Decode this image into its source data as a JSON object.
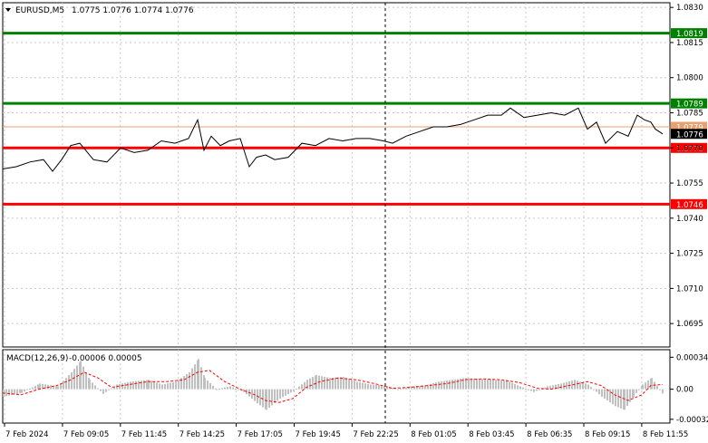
{
  "header": {
    "symbol": "EURUSD,M5",
    "ohlc": "1.0775 1.0776 1.0774 1.0776"
  },
  "macd_header": {
    "label": "MACD(12,26,9)",
    "values": "-0.00006 0.00005"
  },
  "colors": {
    "background": "#ffffff",
    "price_line": "#000000",
    "grid": "#c8c8c8",
    "level_green": "#008000",
    "level_red": "#ff0000",
    "level_orange": "#e8a070",
    "macd_hist": "#c0c0c0",
    "macd_signal": "#ff0000",
    "axis_text": "#000000"
  },
  "chart_data": [
    {
      "type": "line",
      "name": "EURUSD M5 price",
      "ylim": [
        1.0685,
        1.0832
      ],
      "y_ticks": [
        "1.0830",
        "1.0815",
        "1.0800",
        "1.0785",
        "1.0770",
        "1.0755",
        "1.0740",
        "1.0725",
        "1.0710",
        "1.0695"
      ],
      "x_ticks": [
        "7 Feb 2024",
        "7 Feb 09:05",
        "7 Feb 11:45",
        "7 Feb 14:25",
        "7 Feb 17:05",
        "7 Feb 19:45",
        "7 Feb 22:25",
        "8 Feb 01:05",
        "8 Feb 03:45",
        "8 Feb 06:35",
        "8 Feb 09:15",
        "8 Feb 11:55"
      ],
      "series": [
        {
          "x_index": [
            0,
            15,
            30,
            45,
            55,
            65,
            75,
            85,
            100,
            115,
            130,
            145,
            160,
            175,
            190,
            205,
            215,
            222,
            230,
            240,
            250,
            262,
            272,
            280,
            290,
            300,
            315,
            330,
            345,
            360,
            375,
            390,
            405,
            420,
            430,
            445,
            460,
            475,
            490,
            505,
            520,
            535,
            550,
            560,
            575,
            590,
            605,
            620,
            635,
            645,
            655,
            665,
            678,
            690,
            700,
            708,
            715,
            720,
            728
          ],
          "values": [
            1.0761,
            1.0762,
            1.0764,
            1.0765,
            1.076,
            1.0765,
            1.0771,
            1.0772,
            1.0765,
            1.0764,
            1.077,
            1.0768,
            1.0769,
            1.0773,
            1.0772,
            1.0774,
            1.0782,
            1.0769,
            1.0775,
            1.0771,
            1.0773,
            1.0774,
            1.0762,
            1.0766,
            1.0767,
            1.0765,
            1.0766,
            1.0772,
            1.0771,
            1.0774,
            1.0773,
            1.0774,
            1.0774,
            1.0773,
            1.0772,
            1.0775,
            1.0777,
            1.0779,
            1.0779,
            1.078,
            1.0782,
            1.0784,
            1.0784,
            1.0787,
            1.0783,
            1.0784,
            1.0785,
            1.0784,
            1.0787,
            1.0778,
            1.0781,
            1.0772,
            1.0777,
            1.0775,
            1.0784,
            1.0782,
            1.0781,
            1.0778,
            1.0776
          ]
        }
      ],
      "levels": [
        {
          "label": "1.0819",
          "value": 1.0819,
          "color": "#008000"
        },
        {
          "label": "1.0789",
          "value": 1.0789,
          "color": "#008000"
        },
        {
          "label": "1.0779",
          "value": 1.0779,
          "color": "#e8a070"
        },
        {
          "label": "1.0776",
          "value": 1.0776,
          "color": "#000000"
        },
        {
          "label": "1.0770",
          "value": 1.077,
          "color": "#ff0000"
        },
        {
          "label": "1.0746",
          "value": 1.0746,
          "color": "#ff0000"
        }
      ],
      "grid": true
    },
    {
      "type": "bar",
      "name": "MACD(12,26,9)",
      "ylim": [
        -0.00036,
        0.00042
      ],
      "y_ticks": [
        "0.00034",
        "0.00",
        "-0.00032"
      ],
      "histogram": {
        "x_index": [
          0,
          20,
          40,
          60,
          75,
          85,
          95,
          110,
          125,
          140,
          160,
          175,
          190,
          205,
          215,
          222,
          235,
          250,
          265,
          280,
          290,
          305,
          320,
          335,
          345,
          360,
          375,
          390,
          405,
          420,
          435,
          450,
          465,
          480,
          495,
          510,
          525,
          540,
          555,
          570,
          585,
          600,
          615,
          630,
          645,
          660,
          675,
          685,
          695,
          705,
          715,
          728
        ],
        "values": [
          -8e-05,
          -4e-05,
          6e-05,
          3e-05,
          0.00018,
          0.0003,
          0.0001,
          -5e-05,
          5e-05,
          8e-05,
          0.0001,
          5e-05,
          8e-05,
          0.00018,
          0.00032,
          0.00012,
          0.0,
          3e-05,
          -3e-05,
          -0.00015,
          -0.00022,
          -0.0001,
          -2e-05,
          0.0001,
          0.00015,
          0.00012,
          0.00013,
          8e-05,
          5e-05,
          4e-05,
          0.0,
          3e-05,
          4e-05,
          8e-05,
          0.0001,
          0.00012,
          0.00011,
          0.0001,
          9e-05,
          3e-05,
          -3e-05,
          3e-05,
          6e-05,
          0.0001,
          5e-05,
          -8e-05,
          -0.00018,
          -0.00022,
          -8e-05,
          5e-05,
          0.00012,
          -6e-05
        ]
      },
      "signal": {
        "x_index": [
          0,
          20,
          40,
          60,
          75,
          90,
          105,
          120,
          140,
          160,
          180,
          200,
          215,
          228,
          245,
          262,
          278,
          290,
          305,
          320,
          335,
          350,
          370,
          390,
          410,
          430,
          450,
          470,
          490,
          510,
          530,
          550,
          570,
          590,
          605,
          625,
          645,
          660,
          675,
          690,
          705,
          715,
          728
        ],
        "values": [
          -4e-05,
          -6e-05,
          0.0,
          4e-05,
          0.0001,
          0.00018,
          0.00012,
          2e-05,
          5e-05,
          8e-05,
          8e-05,
          0.0001,
          0.00018,
          0.0002,
          8e-05,
          0.0,
          -6e-05,
          -0.00012,
          -0.00014,
          -0.0001,
          2e-05,
          8e-05,
          0.00012,
          0.0001,
          6e-05,
          1e-05,
          2e-05,
          4e-05,
          6e-05,
          0.0001,
          0.00011,
          0.0001,
          7e-05,
          1e-05,
          0.0,
          4e-05,
          8e-05,
          4e-05,
          -6e-05,
          -0.00012,
          -6e-05,
          4e-05,
          5e-05
        ]
      }
    }
  ]
}
